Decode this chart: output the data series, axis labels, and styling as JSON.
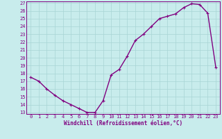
{
  "x": [
    0,
    1,
    2,
    3,
    4,
    5,
    6,
    7,
    8,
    9,
    10,
    11,
    12,
    13,
    14,
    15,
    16,
    17,
    18,
    19,
    20,
    21,
    22,
    23
  ],
  "y": [
    17.5,
    17.0,
    16.0,
    15.2,
    14.5,
    14.0,
    13.5,
    13.0,
    13.0,
    14.5,
    17.8,
    18.5,
    20.2,
    22.2,
    23.0,
    24.0,
    25.0,
    25.3,
    25.6,
    26.4,
    26.9,
    26.8,
    25.7,
    18.8
  ],
  "xlabel": "Windchill (Refroidissement éolien,°C)",
  "ylim": [
    13,
    27
  ],
  "xlim": [
    -0.5,
    23.5
  ],
  "yticks": [
    13,
    14,
    15,
    16,
    17,
    18,
    19,
    20,
    21,
    22,
    23,
    24,
    25,
    26,
    27
  ],
  "xticks": [
    0,
    1,
    2,
    3,
    4,
    5,
    6,
    7,
    8,
    9,
    10,
    11,
    12,
    13,
    14,
    15,
    16,
    17,
    18,
    19,
    20,
    21,
    22,
    23
  ],
  "line_color": "#800080",
  "bg_color": "#c8ecec",
  "grid_color": "#a8d4d4",
  "tick_color": "#800080",
  "xlabel_color": "#800080",
  "marker_size": 2.5,
  "line_width": 1.0,
  "tick_fontsize": 5.0,
  "xlabel_fontsize": 5.5
}
